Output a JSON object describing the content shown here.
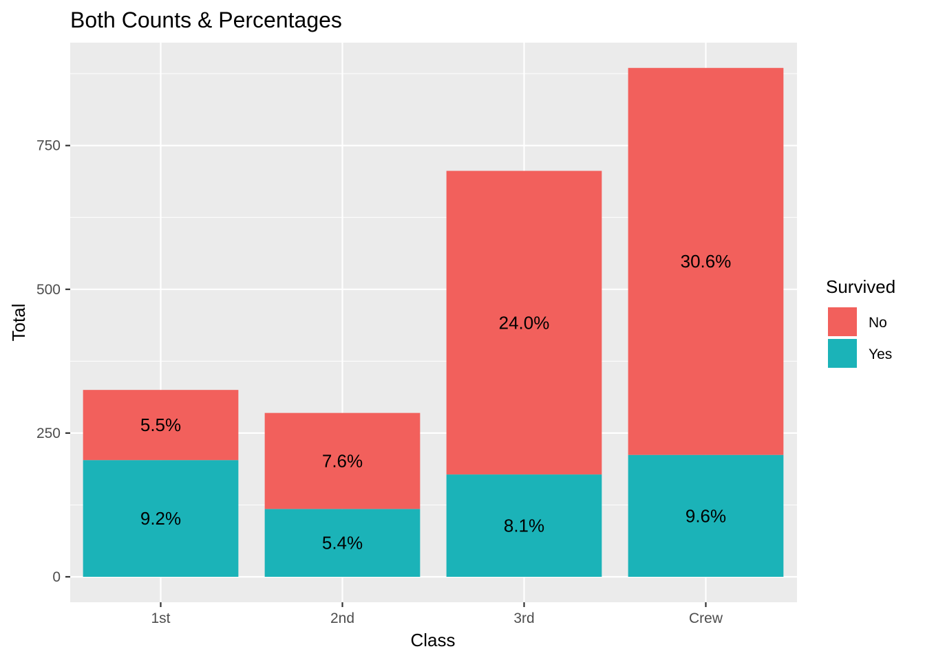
{
  "chart_data": {
    "type": "bar",
    "stacked": true,
    "title": "Both Counts & Percentages",
    "xlabel": "Class",
    "ylabel": "Total",
    "categories": [
      "1st",
      "2nd",
      "3rd",
      "Crew"
    ],
    "ylim": [
      0,
      885
    ],
    "yticks": [
      0,
      250,
      500,
      750
    ],
    "grid": true,
    "legend": {
      "title": "Survived",
      "position": "right",
      "entries": [
        {
          "name": "No",
          "color": "#F8766D"
        },
        {
          "name": "Yes",
          "color": "#00BFC4"
        }
      ]
    },
    "series": [
      {
        "name": "Yes",
        "color": "#1BB3B8",
        "values": [
          203,
          118,
          178,
          212
        ],
        "labels": [
          "9.2%",
          "5.4%",
          "8.1%",
          "9.6%"
        ]
      },
      {
        "name": "No",
        "color": "#F2605C",
        "values": [
          122,
          167,
          528,
          673
        ],
        "labels": [
          "5.5%",
          "7.6%",
          "24.0%",
          "30.6%"
        ]
      }
    ]
  }
}
